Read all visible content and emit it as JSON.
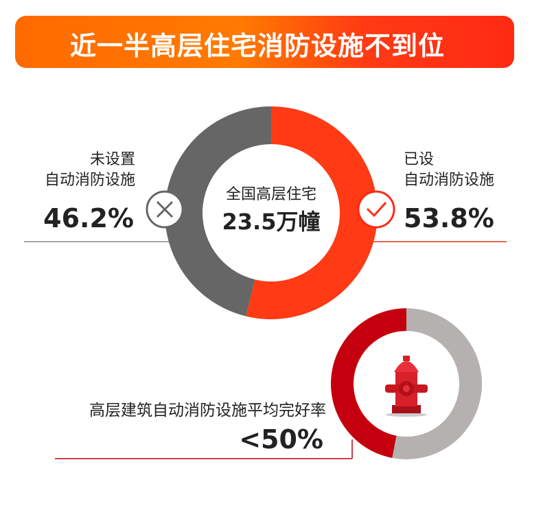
{
  "title": "近一半高层住宅消防设施不到位",
  "chart_data": [
    {
      "type": "pie",
      "donut": true,
      "center_label": "全国高层住宅",
      "center_value": "23.5万幢",
      "slices": [
        {
          "label": "已设自动消防设施",
          "label_lines": [
            "已设",
            "自动消防设施"
          ],
          "value": 53.8,
          "value_text": "53.8%",
          "color": "#ff3a14",
          "icon": "check-icon"
        },
        {
          "label": "未设置自动消防设施",
          "label_lines": [
            "未设置",
            "自动消防设施"
          ],
          "value": 46.2,
          "value_text": "46.2%",
          "color": "#666666",
          "icon": "x-icon"
        }
      ]
    },
    {
      "type": "pie",
      "donut": true,
      "center_icon": "fire-hydrant-icon",
      "label": "高层建筑自动消防设施平均完好率",
      "value_text": "<50%",
      "slices": [
        {
          "label": "完好率",
          "value": 47,
          "color": "#c4000f"
        },
        {
          "label": "",
          "value": 53,
          "color": "#b5b1b0"
        }
      ]
    }
  ]
}
